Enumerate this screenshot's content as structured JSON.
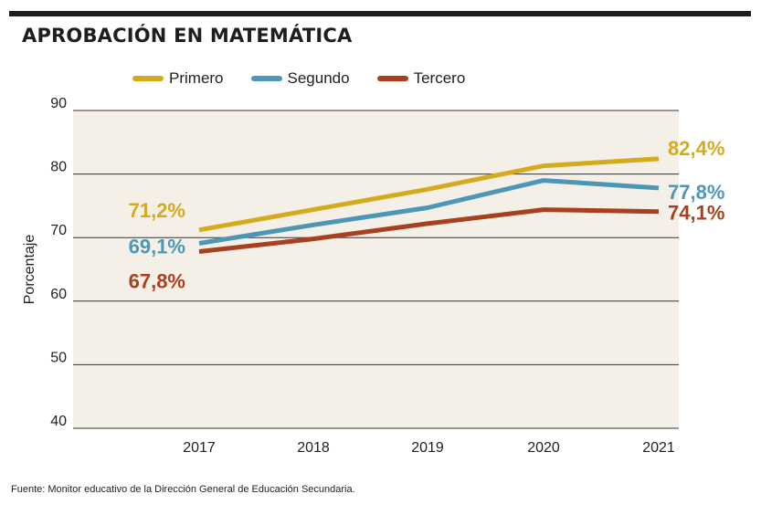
{
  "title": "APROBACIÓN EN MATEMÁTICA",
  "source": "Fuente: Monitor educativo de la Dirección General de Educación Secundaria.",
  "chart_data": {
    "type": "line",
    "title": "APROBACIÓN EN MATEMÁTICA",
    "xlabel": "",
    "ylabel": "Porcentaje",
    "x": [
      "2017",
      "2018",
      "2019",
      "2020",
      "2021"
    ],
    "ylim": [
      40,
      90
    ],
    "yticks": [
      "40",
      "50",
      "60",
      "70",
      "80",
      "90"
    ],
    "grid": true,
    "legend_position": "top",
    "series": [
      {
        "name": "Primero",
        "color": "#d4ab1c",
        "values": [
          71.2,
          74.4,
          77.6,
          81.3,
          82.4
        ],
        "start_label": "71,2%",
        "end_label": "82,4%"
      },
      {
        "name": "Segundo",
        "color": "#4b97b5",
        "values": [
          69.1,
          72.0,
          74.7,
          79.0,
          77.8
        ],
        "start_label": "69,1%",
        "end_label": "77,8%"
      },
      {
        "name": "Tercero",
        "color": "#a8401f",
        "values": [
          67.8,
          69.8,
          72.2,
          74.4,
          74.1
        ],
        "start_label": "67,8%",
        "end_label": "74,1%"
      }
    ]
  }
}
